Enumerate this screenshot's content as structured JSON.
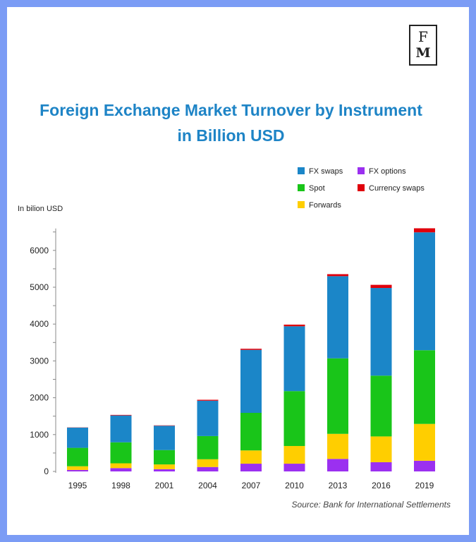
{
  "logo": {
    "line1": "F",
    "line2": "M"
  },
  "title_line1": "Foreign Exchange Market Turnover by Instrument",
  "title_line2": "in Billion USD",
  "source": "Source: Bank for International Settlements",
  "chart_data": {
    "type": "bar",
    "stacked": true,
    "title": "Foreign Exchange Market Turnover by Instrument in Billion USD",
    "ylabel": "In bilion USD",
    "xlabel": "",
    "ylim": [
      0,
      6500
    ],
    "yticks": [
      0,
      1000,
      2000,
      3000,
      4000,
      5000,
      6000
    ],
    "grid": false,
    "legend_placement": "top-right",
    "categories": [
      "1995",
      "1998",
      "2001",
      "2004",
      "2007",
      "2010",
      "2013",
      "2016",
      "2019"
    ],
    "series": [
      {
        "name": "FX options",
        "color": "#9b30f0",
        "values": [
          40,
          90,
          60,
          120,
          210,
          210,
          340,
          250,
          290
        ]
      },
      {
        "name": "Forwards",
        "color": "#ffce00",
        "values": [
          100,
          130,
          130,
          210,
          360,
          480,
          680,
          700,
          1000
        ]
      },
      {
        "name": "Spot",
        "color": "#19c519",
        "values": [
          500,
          570,
          390,
          630,
          1020,
          1490,
          2050,
          1650,
          2000
        ]
      },
      {
        "name": "FX swaps",
        "color": "#1b86c8",
        "values": [
          550,
          730,
          660,
          960,
          1710,
          1760,
          2230,
          2380,
          3200
        ]
      },
      {
        "name": "Currency swaps",
        "color": "#e0000c",
        "values": [
          5,
          15,
          10,
          25,
          30,
          45,
          55,
          85,
          110
        ]
      }
    ]
  }
}
